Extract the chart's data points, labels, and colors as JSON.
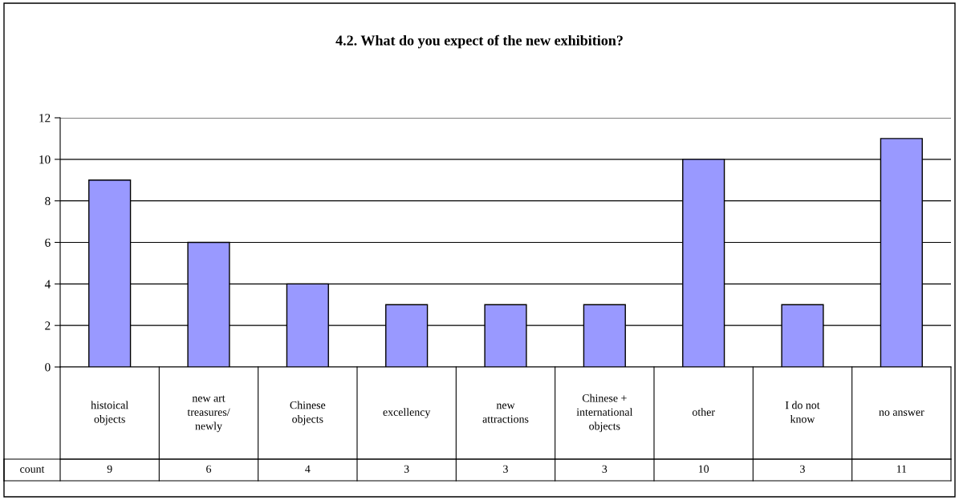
{
  "chart_data": {
    "type": "bar",
    "title": "4.2. What do you expect of the new exhibition?",
    "categories": [
      "histoical\nobjects",
      "new art\ntreasures/\nnewly",
      "Chinese\nobjects",
      "excellency",
      "new\nattractions",
      "Chinese +\ninternational\nobjects",
      "other",
      "I do not\nknow",
      "no answer"
    ],
    "series": [
      {
        "name": "count",
        "color": "#9999ff",
        "values": [
          9,
          6,
          4,
          3,
          3,
          3,
          10,
          3,
          11
        ]
      }
    ],
    "ylim": [
      0,
      12
    ],
    "yticks": [
      0,
      2,
      4,
      6,
      8,
      10,
      12
    ],
    "grid": "y",
    "data_labels": true
  }
}
